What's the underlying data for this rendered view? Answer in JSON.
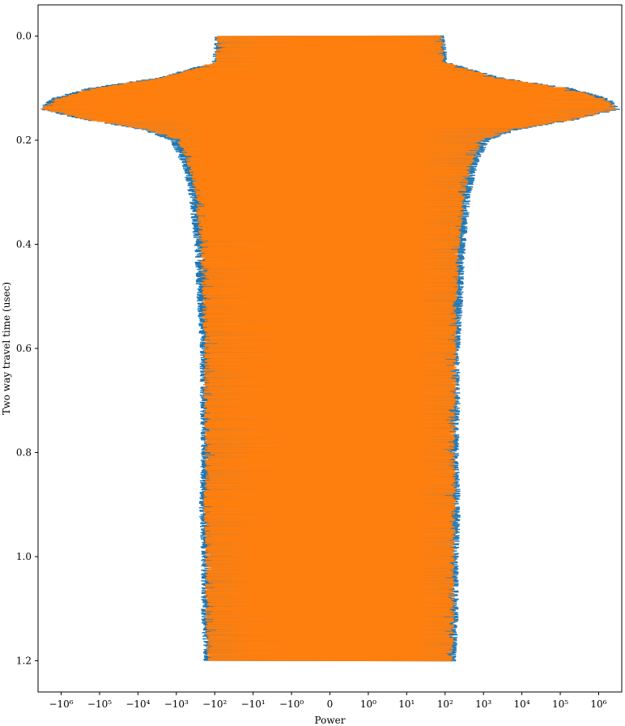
{
  "chart_data": {
    "type": "line",
    "xlabel": "Power",
    "ylabel": "Two way travel time (usec)",
    "x_scale": "symlog",
    "x_linthresh": 1,
    "xlim": [
      -4000000,
      4000000
    ],
    "ylim": [
      1.26,
      -0.06
    ],
    "x_ticks": [
      {
        "value": -1000000,
        "label": "−10⁶"
      },
      {
        "value": -100000,
        "label": "−10⁵"
      },
      {
        "value": -10000,
        "label": "−10⁴"
      },
      {
        "value": -1000,
        "label": "−10³"
      },
      {
        "value": -100,
        "label": "−10²"
      },
      {
        "value": -10,
        "label": "−10¹"
      },
      {
        "value": -1,
        "label": "−10⁰"
      },
      {
        "value": 0,
        "label": "0"
      },
      {
        "value": 1,
        "label": "10⁰"
      },
      {
        "value": 10,
        "label": "10¹"
      },
      {
        "value": 100,
        "label": "10²"
      },
      {
        "value": 1000,
        "label": "10³"
      },
      {
        "value": 10000,
        "label": "10⁴"
      },
      {
        "value": 100000,
        "label": "10⁵"
      },
      {
        "value": 1000000,
        "label": "10⁶"
      }
    ],
    "y_ticks": [
      {
        "value": 0.0,
        "label": "0.0"
      },
      {
        "value": 0.2,
        "label": "0.2"
      },
      {
        "value": 0.4,
        "label": "0.4"
      },
      {
        "value": 0.6,
        "label": "0.6"
      },
      {
        "value": 0.8,
        "label": "0.8"
      },
      {
        "value": 1.0,
        "label": "1.0"
      },
      {
        "value": 1.2,
        "label": "1.2"
      }
    ],
    "series": [
      {
        "color": "#1f77b4",
        "envelope": {
          "time": [
            0.0,
            0.05,
            0.08,
            0.1,
            0.12,
            0.14,
            0.16,
            0.18,
            0.2,
            0.25,
            0.3,
            0.4,
            0.5,
            0.6,
            0.7,
            0.8,
            0.9,
            1.0,
            1.1,
            1.2
          ],
          "amplitude": [
            100,
            120,
            3000,
            200000,
            2000000,
            4000000,
            300000,
            8000,
            1500,
            700,
            500,
            350,
            300,
            250,
            250,
            230,
            260,
            230,
            230,
            200
          ]
        }
      },
      {
        "color": "#ff7f0e",
        "envelope": {
          "time": [
            0.0,
            0.05,
            0.08,
            0.1,
            0.12,
            0.14,
            0.16,
            0.18,
            0.2,
            0.25,
            0.3,
            0.4,
            0.5,
            0.6,
            0.7,
            0.8,
            0.9,
            1.0,
            1.1,
            1.2
          ],
          "amplitude": [
            90,
            100,
            2500,
            150000,
            1500000,
            3500000,
            250000,
            6000,
            1000,
            500,
            350,
            250,
            220,
            200,
            200,
            180,
            200,
            180,
            180,
            160
          ]
        }
      }
    ]
  }
}
